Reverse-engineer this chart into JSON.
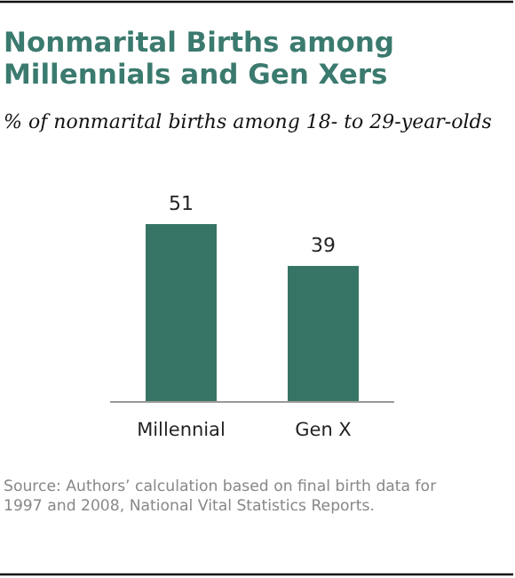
{
  "chart_data": {
    "type": "bar",
    "title": "Nonmarital Births among Millennials and Gen Xers",
    "subtitle": "% of nonmarital births among 18- to 29-year-olds",
    "categories": [
      "Millennial",
      "Gen X"
    ],
    "values": [
      51,
      39
    ],
    "color": "#367565",
    "data_labels": true,
    "annotations": [
      "Source: Authors’ calculation based on final birth data for 1997 and 2008, National Vital Statistics Reports."
    ]
  }
}
